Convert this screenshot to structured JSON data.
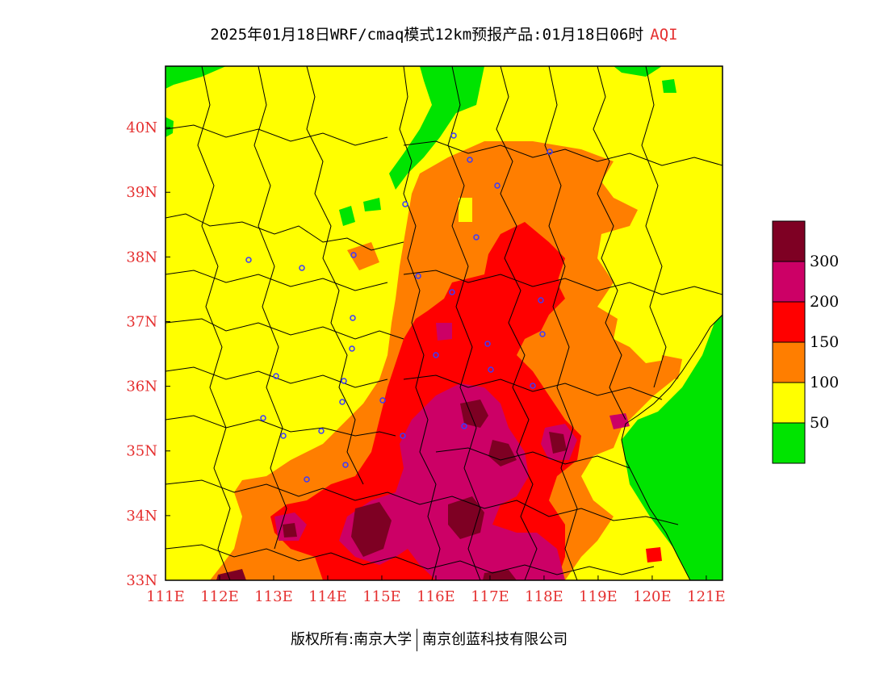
{
  "title": {
    "main": "2025年01月18日WRF/cmaq模式12km预报产品:01月18日06时",
    "variable": "AQI"
  },
  "colors": {
    "green": "#00e400",
    "yellow": "#ffff00",
    "orange": "#ff7e00",
    "red": "#ff0000",
    "magenta": "#cc0066",
    "darkred": "#7e0023",
    "axis_label": "#e53030",
    "station_marker": "#3a3aff"
  },
  "axes": {
    "lon_ticks": [
      "111E",
      "112E",
      "113E",
      "114E",
      "115E",
      "116E",
      "117E",
      "118E",
      "119E",
      "120E",
      "121E"
    ],
    "lat_ticks": [
      "33N",
      "34N",
      "35N",
      "36N",
      "37N",
      "38N",
      "39N",
      "40N"
    ],
    "lon_range": [
      111,
      121.3
    ],
    "lat_range": [
      33,
      40.95
    ]
  },
  "legend": {
    "labels": [
      "300",
      "200",
      "150",
      "100",
      "50"
    ]
  },
  "footer": {
    "left": "版权所有:南京大学",
    "right": "南京创蓝科技有限公司"
  }
}
